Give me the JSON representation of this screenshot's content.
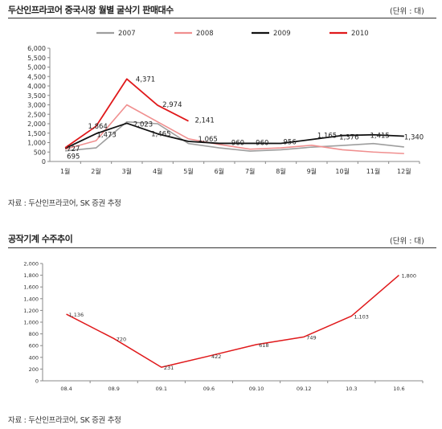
{
  "chart1": {
    "title": "두산인프라코어 중국시장 월별 굴삭기 판매대수",
    "unit": "(단위 : 대)",
    "source": "자료 : 두산인프라코어, SK 증권 추정"
  },
  "chart2": {
    "title": "공작기계 수주추이",
    "unit": "(단위 : 대)",
    "source": "자료 : 두산인프라코어, SK 증권 추정"
  },
  "chart_data": [
    {
      "type": "line",
      "title": "두산인프라코어 중국시장 월별 굴삭기 판매대수",
      "categories": [
        "1월",
        "2월",
        "3월",
        "4월",
        "5월",
        "6월",
        "7월",
        "8월",
        "9월",
        "10월",
        "11월",
        "12월"
      ],
      "ylim": [
        0,
        6000
      ],
      "yticks": [
        "0",
        "500",
        "1,000",
        "1,500",
        "2,000",
        "2,500",
        "3,000",
        "3,500",
        "4,000",
        "4,500",
        "5,000",
        "5,500",
        "6,000"
      ],
      "grid": false,
      "legend_position": "top",
      "series": [
        {
          "name": "2007",
          "color": "#9e9e9e",
          "values": [
            560,
            720,
            2100,
            2000,
            950,
            720,
            550,
            620,
            760,
            850,
            950,
            770
          ]
        },
        {
          "name": "2008",
          "color": "#f08f8f",
          "values": [
            650,
            1100,
            3000,
            2100,
            1200,
            900,
            650,
            720,
            860,
            620,
            500,
            420
          ]
        },
        {
          "name": "2009",
          "color": "#111111",
          "values": [
            695,
            1473,
            2023,
            1465,
            1065,
            960,
            960,
            956,
            1165,
            1376,
            1415,
            1340
          ]
        },
        {
          "name": "2010",
          "color": "#e0191b",
          "values": [
            727,
            1864,
            4371,
            2974,
            2141,
            null,
            null,
            null,
            null,
            null,
            null,
            null
          ]
        }
      ],
      "labels": [
        {
          "text": "727",
          "cat": 0,
          "value": 727,
          "dx": 2,
          "dy": 4
        },
        {
          "text": "695",
          "cat": 0,
          "value": 695,
          "dx": 2,
          "dy": 13
        },
        {
          "text": "1,864",
          "cat": 1,
          "value": 1864,
          "dx": -10,
          "dy": 3
        },
        {
          "text": "1,473",
          "cat": 1,
          "value": 1473,
          "dx": 1,
          "dy": 4
        },
        {
          "text": "4,371",
          "cat": 2,
          "value": 4371,
          "dx": 11,
          "dy": 3
        },
        {
          "text": "2,023",
          "cat": 2,
          "value": 2023,
          "dx": 8,
          "dy": 4
        },
        {
          "text": "2,974",
          "cat": 3,
          "value": 2974,
          "dx": 6,
          "dy": 2
        },
        {
          "text": "1,465",
          "cat": 3,
          "value": 1465,
          "dx": -8,
          "dy": 3
        },
        {
          "text": "2,141",
          "cat": 4,
          "value": 2141,
          "dx": 8,
          "dy": 2
        },
        {
          "text": "1,065",
          "cat": 4,
          "value": 1065,
          "dx": 12,
          "dy": 0
        },
        {
          "text": "960",
          "cat": 5,
          "value": 960,
          "dx": 15,
          "dy": 2
        },
        {
          "text": "960",
          "cat": 6,
          "value": 960,
          "dx": 7,
          "dy": 2
        },
        {
          "text": "956",
          "cat": 7,
          "value": 956,
          "dx": 3,
          "dy": 1
        },
        {
          "text": "1,165",
          "cat": 8,
          "value": 1165,
          "dx": 7,
          "dy": -2
        },
        {
          "text": "1,376",
          "cat": 9,
          "value": 1376,
          "dx": -4,
          "dy": 5
        },
        {
          "text": "1,415",
          "cat": 10,
          "value": 1415,
          "dx": -4,
          "dy": 4
        },
        {
          "text": "1,340",
          "cat": 11,
          "value": 1340,
          "dx": 0,
          "dy": 4
        }
      ]
    },
    {
      "type": "line",
      "title": "공작기계 수주추이",
      "categories": [
        "08.4",
        "08.9",
        "09.1",
        "09.6",
        "09.10",
        "09.12",
        "10.3",
        "10.6"
      ],
      "ylim": [
        0,
        2000
      ],
      "yticks": [
        "0",
        "200",
        "400",
        "600",
        "800",
        "1,000",
        "1,200",
        "1,400",
        "1,600",
        "1,800",
        "2,000"
      ],
      "grid": false,
      "series": [
        {
          "color": "#e0191b",
          "values": [
            1136,
            720,
            231,
            422,
            618,
            749,
            1103,
            1800
          ]
        }
      ],
      "labels": [
        "1,136",
        "720",
        "231",
        "422",
        "618",
        "749",
        "1,103",
        "1,800"
      ]
    }
  ]
}
